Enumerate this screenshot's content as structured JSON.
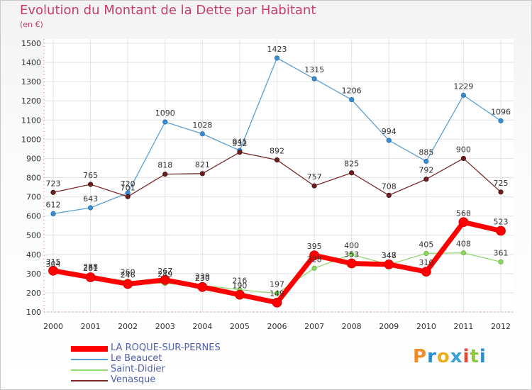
{
  "header": {
    "title": "Evolution du Montant de la Dette par Habitant",
    "unit": "(en €)"
  },
  "brand": {
    "text": "Proxiti",
    "colors": [
      "#f08c28",
      "#2c8cd0",
      "#e8b020",
      "#3aa0d8",
      "#e84830",
      "#8cc83c",
      "#2c8cd0"
    ]
  },
  "chart_data": {
    "type": "line",
    "title": "Evolution du Montant de la Dette par Habitant",
    "ylabel": "(en €)",
    "xlabel": "",
    "x": [
      "2000",
      "2001",
      "2002",
      "2003",
      "2004",
      "2005",
      "2006",
      "2007",
      "2008",
      "2009",
      "2010",
      "2011",
      "2012"
    ],
    "yticks": [
      100,
      200,
      300,
      400,
      500,
      600,
      700,
      800,
      900,
      1000,
      1100,
      1200,
      1300,
      1400,
      1500
    ],
    "ylim": [
      100,
      1500
    ],
    "grid": true,
    "legend_position": "bottom-left",
    "series": [
      {
        "name": "LA ROQUE-SUR-PERNES",
        "color": "#ff0000",
        "values": [
          315,
          281,
          246,
          267,
          230,
          190,
          149,
          395,
          353,
          348,
          310,
          568,
          523
        ]
      },
      {
        "name": "Le Beaucet",
        "color": "#5a9fd4",
        "values": [
          612,
          643,
          720,
          1090,
          1028,
          941,
          1423,
          1315,
          1206,
          994,
          885,
          1229,
          1096
        ]
      },
      {
        "name": "Saint-Didier",
        "color": "#90d870",
        "values": [
          304,
          288,
          260,
          249,
          239,
          216,
          197,
          328,
          400,
          347,
          405,
          408,
          361
        ]
      },
      {
        "name": "Venasque",
        "color": "#7a2a2a",
        "values": [
          723,
          765,
          701,
          818,
          821,
          932,
          892,
          757,
          825,
          708,
          792,
          900,
          725
        ]
      }
    ]
  }
}
